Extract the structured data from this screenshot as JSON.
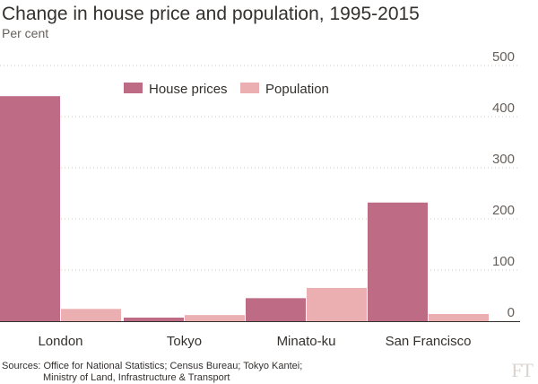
{
  "colors": {
    "house_prices": "#be6b85",
    "population": "#ebaeb1",
    "grid": "#cfc9c4",
    "text": "#33302e"
  },
  "source": {
    "line1": "Sources: Office for National Statistics; Census Bureau; Tokyo Kantei;",
    "line2": "Ministry of Land, Infrastructure & Transport"
  },
  "logo": "FT",
  "chart_data": {
    "type": "bar",
    "title": "Change in house price and population, 1995-2015",
    "subtitle": "Per cent",
    "categories": [
      "London",
      "Tokyo",
      "Minato-ku",
      "San Francisco"
    ],
    "series": [
      {
        "name": "House prices",
        "values": [
          440,
          7,
          45,
          232
        ]
      },
      {
        "name": "Population",
        "values": [
          24,
          12,
          65,
          14
        ]
      }
    ],
    "ylim": [
      0,
      500
    ],
    "yticks": [
      0,
      100,
      200,
      300,
      400,
      500
    ],
    "grid": true,
    "legend_position": "top-center"
  }
}
